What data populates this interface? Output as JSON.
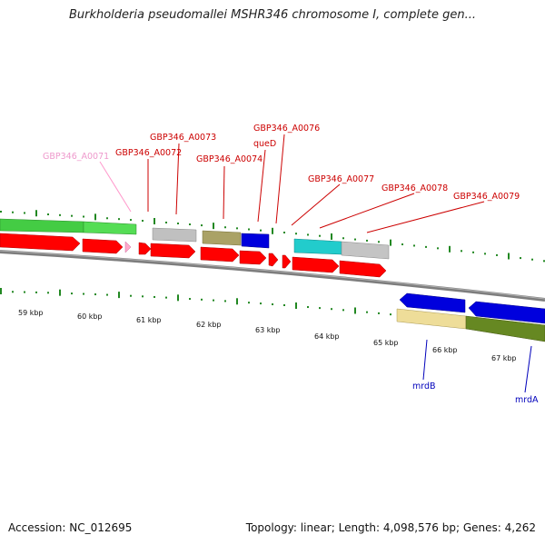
{
  "title": "Burkholderia pseudomallei MSHR346 chromosome I, complete gen...",
  "footer": {
    "accession_label": "Accession:",
    "accession": "NC_012695",
    "topology_label": "Topology:",
    "topology": "linear",
    "length_label": "Length:",
    "length": "4,098,576 bp",
    "genes_label": "Genes:",
    "genes": "4,262"
  },
  "ruler": {
    "unit": "kbp",
    "ticks": [
      "59 kbp",
      "60 kbp",
      "61 kbp",
      "62 kbp",
      "63 kbp",
      "64 kbp",
      "65 kbp",
      "66 kbp",
      "67 kbp"
    ]
  },
  "gene_labels": [
    {
      "id": "GBP346_A0071",
      "color": "#ee99cc"
    },
    {
      "id": "GBP346_A0072",
      "color": "#cc0000"
    },
    {
      "id": "GBP346_A0073",
      "color": "#cc0000"
    },
    {
      "id": "GBP346_A0074",
      "color": "#cc0000"
    },
    {
      "id": "queD",
      "color": "#cc0000"
    },
    {
      "id": "GBP346_A0076",
      "color": "#cc0000"
    },
    {
      "id": "GBP346_A0077",
      "color": "#cc0000"
    },
    {
      "id": "GBP346_A0078",
      "color": "#cc0000"
    },
    {
      "id": "GBP346_A0079",
      "color": "#cc0000"
    },
    {
      "id": "mrdB",
      "color": "#0000bb"
    },
    {
      "id": "mrdA",
      "color": "#0000bb"
    }
  ],
  "colors": {
    "cds_red": "#ff0000",
    "cds_pink": "#ffaacc",
    "green": "#44cc44",
    "grey": "#bbbbbb",
    "olive": "#aaa266",
    "blue": "#0000dd",
    "cyan": "#22cccc",
    "pale_yellow": "#eedd99",
    "dark_olive": "#668822",
    "backbone": "#888888",
    "tick_green": "#228822"
  }
}
